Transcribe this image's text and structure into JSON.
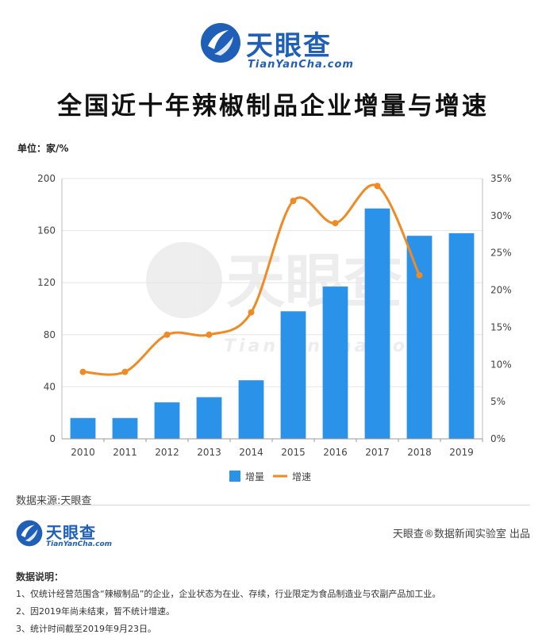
{
  "header": {
    "brand": "天眼查",
    "domain": "TianYanCha.com",
    "title": "全国近十年辣椒制品企业增量与增速"
  },
  "unit_label": "单位：家/%",
  "watermark": {
    "brand": "天眼查",
    "domain": "TianYanCha.com"
  },
  "chart_data": {
    "type": "bar",
    "categories": [
      "2010",
      "2011",
      "2012",
      "2013",
      "2014",
      "2015",
      "2016",
      "2017",
      "2018",
      "2019"
    ],
    "series": [
      {
        "name": "增量",
        "type": "bar",
        "axis": "left",
        "color": "#2b92ea",
        "values": [
          16,
          16,
          28,
          32,
          45,
          98,
          117,
          177,
          156,
          158
        ]
      },
      {
        "name": "增速",
        "type": "line",
        "axis": "right",
        "color": "#f08a24",
        "unit": "%",
        "values": [
          9,
          9,
          14,
          14,
          17,
          32,
          29,
          34,
          22,
          null
        ]
      }
    ],
    "y_left": {
      "min": 0,
      "max": 200,
      "ticks": [
        0,
        40,
        80,
        120,
        160,
        200
      ]
    },
    "y_right": {
      "min": 0,
      "max": 35,
      "ticks": [
        "0%",
        "5%",
        "10%",
        "15%",
        "20%",
        "25%",
        "30%",
        "35%"
      ]
    },
    "grid": true,
    "legend_position": "bottom-center"
  },
  "footer": {
    "source": "数据来源:天眼查",
    "brand": "天眼查",
    "domain": "TianYanCha.com",
    "credit": "天眼查®数据新闻实验室 出品",
    "notes_title": "数据说明：",
    "notes": [
      "1、仅统计经营范围含“辣椒制品”的企业，企业状态为在业、存续，行业限定为食品制造业与农副产品加工业。",
      "2、因2019年尚未结束，暂不统计增速。",
      "3、统计时间截至2019年9月23日。"
    ]
  }
}
